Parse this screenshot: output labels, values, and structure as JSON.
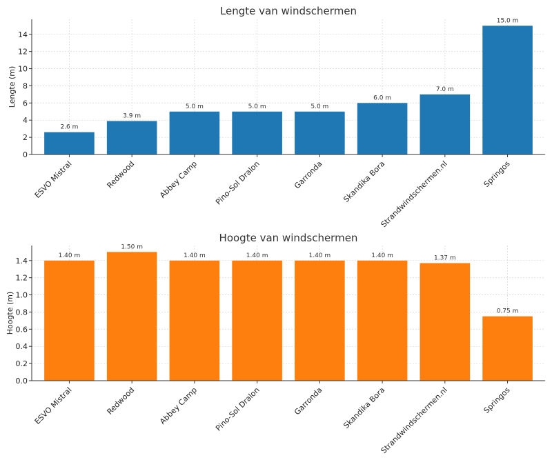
{
  "chart_data": [
    {
      "type": "bar",
      "title": "Lengte van windschermen",
      "xlabel": "",
      "ylabel": "Lengte (m)",
      "categories": [
        "ESVO Mistral",
        "Redwood",
        "Abbey Camp",
        "Pino-Sol Dralon",
        "Garronda",
        "Skandika Bora",
        "Strandwindschermen.nl",
        "Springos"
      ],
      "values": [
        2.6,
        3.9,
        5.0,
        5.0,
        5.0,
        6.0,
        7.0,
        15.0
      ],
      "value_labels": [
        "2.6 m",
        "3.9 m",
        "5.0 m",
        "5.0 m",
        "5.0 m",
        "6.0 m",
        "7.0 m",
        "15.0 m"
      ],
      "ylim": [
        0,
        15.75
      ],
      "yticks": [
        0,
        2,
        4,
        6,
        8,
        10,
        12,
        14
      ],
      "ytick_labels": [
        "0",
        "2",
        "4",
        "6",
        "8",
        "10",
        "12",
        "14"
      ],
      "grid": true,
      "color": "#1f77b4"
    },
    {
      "type": "bar",
      "title": "Hoogte van windschermen",
      "xlabel": "",
      "ylabel": "Hoogte (m)",
      "categories": [
        "ESVO Mistral",
        "Redwood",
        "Abbey Camp",
        "Pino-Sol Dralon",
        "Garronda",
        "Skandika Bora",
        "Strandwindschermen.nl",
        "Springos"
      ],
      "values": [
        1.4,
        1.5,
        1.4,
        1.4,
        1.4,
        1.4,
        1.37,
        0.75
      ],
      "value_labels": [
        "1.40 m",
        "1.50 m",
        "1.40 m",
        "1.40 m",
        "1.40 m",
        "1.40 m",
        "1.37 m",
        "0.75 m"
      ],
      "ylim": [
        0,
        1.575
      ],
      "yticks": [
        0,
        0.2,
        0.4,
        0.6,
        0.8,
        1.0,
        1.2,
        1.4
      ],
      "ytick_labels": [
        "0.0",
        "0.2",
        "0.4",
        "0.6",
        "0.8",
        "1.0",
        "1.2",
        "1.4"
      ],
      "grid": true,
      "color": "#ff7f0e"
    }
  ]
}
